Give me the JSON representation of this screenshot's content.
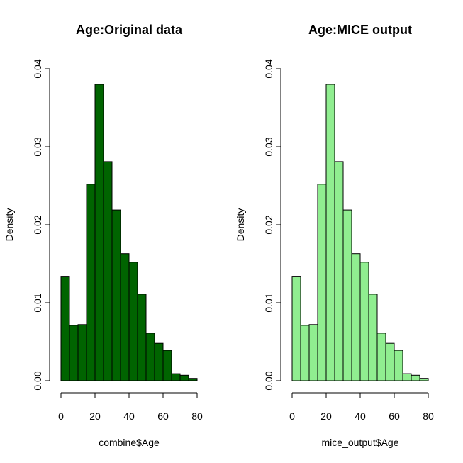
{
  "chart_data": [
    {
      "type": "bar",
      "title": "Age:Original data",
      "xlabel": "combine$Age",
      "ylabel": "Density",
      "xlim": [
        0,
        80
      ],
      "ylim": [
        0,
        0.04
      ],
      "x_ticks": [
        "0",
        "20",
        "40",
        "60",
        "80"
      ],
      "y_ticks": [
        "0.00",
        "0.01",
        "0.02",
        "0.03",
        "0.04"
      ],
      "bin_edges": [
        0,
        5,
        10,
        15,
        20,
        25,
        30,
        35,
        40,
        45,
        50,
        55,
        60,
        65,
        70,
        75,
        80
      ],
      "values": [
        0.0134,
        0.0071,
        0.0072,
        0.0252,
        0.038,
        0.0281,
        0.0219,
        0.0163,
        0.0152,
        0.0111,
        0.0061,
        0.0048,
        0.0039,
        0.0009,
        0.0007,
        0.0003
      ],
      "fill_color": "#006400",
      "grid": false
    },
    {
      "type": "bar",
      "title": "Age:MICE output",
      "xlabel": "mice_output$Age",
      "ylabel": "Density",
      "xlim": [
        0,
        80
      ],
      "ylim": [
        0,
        0.04
      ],
      "x_ticks": [
        "0",
        "20",
        "40",
        "60",
        "80"
      ],
      "y_ticks": [
        "0.00",
        "0.01",
        "0.02",
        "0.03",
        "0.04"
      ],
      "bin_edges": [
        0,
        5,
        10,
        15,
        20,
        25,
        30,
        35,
        40,
        45,
        50,
        55,
        60,
        65,
        70,
        75,
        80
      ],
      "values": [
        0.0134,
        0.0071,
        0.0072,
        0.0252,
        0.038,
        0.0281,
        0.0219,
        0.0163,
        0.0152,
        0.0111,
        0.0061,
        0.0048,
        0.0039,
        0.0009,
        0.0007,
        0.0003
      ],
      "fill_color": "#90EE90",
      "grid": false
    }
  ]
}
